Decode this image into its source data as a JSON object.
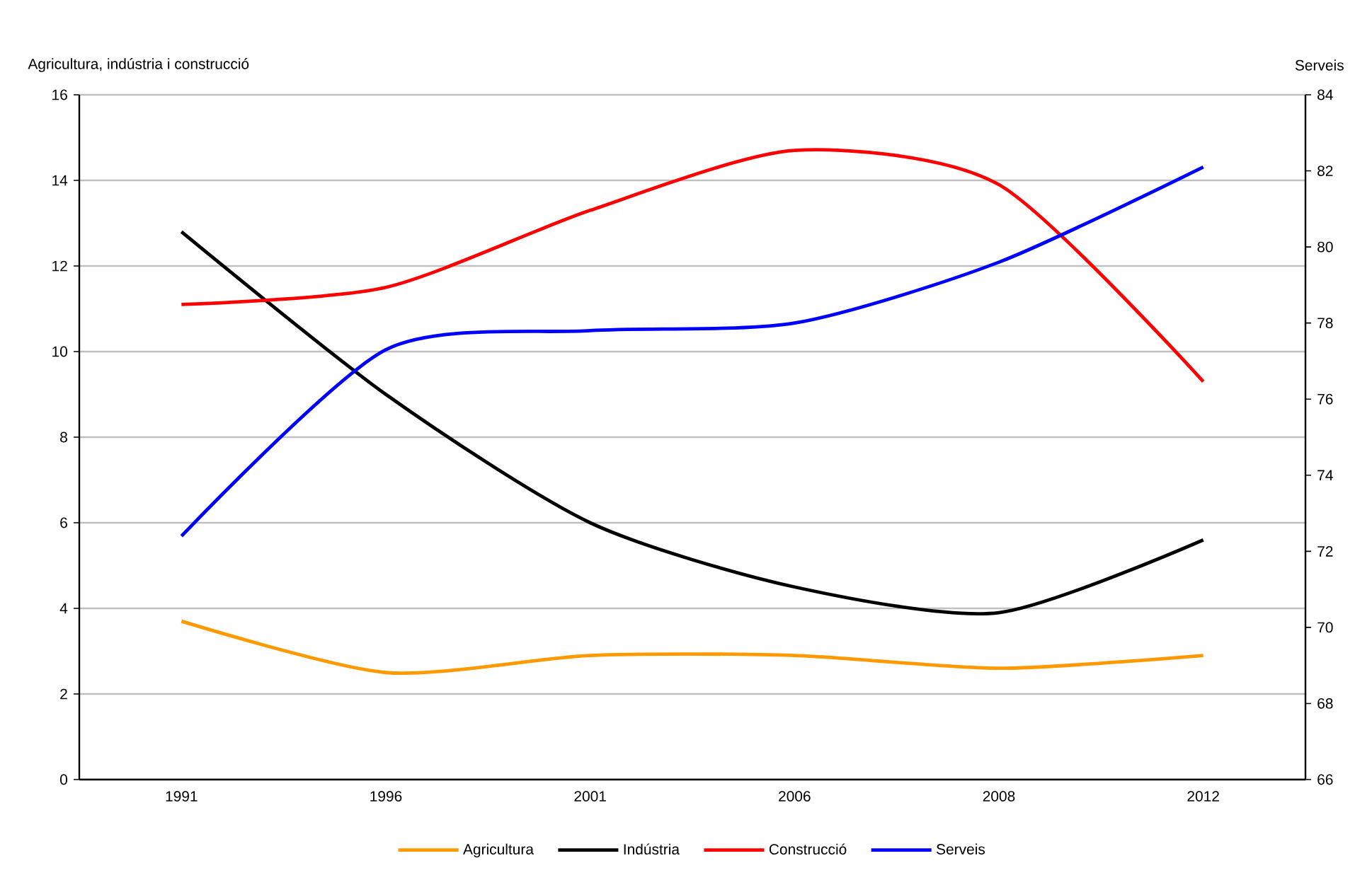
{
  "chart_data": {
    "type": "line",
    "ylabel": "Agricultura, indústria i construcció",
    "y2label": "Serveis",
    "categories": [
      "1991",
      "1996",
      "2001",
      "2006",
      "2008",
      "2012"
    ],
    "series": [
      {
        "name": "Agricultura",
        "color": "#ff9900",
        "values": [
          3.7,
          2.5,
          2.9,
          2.9,
          2.6,
          2.9
        ]
      },
      {
        "name": "Indústria",
        "color": "#000000",
        "values": [
          12.8,
          9.0,
          6.0,
          4.5,
          3.9,
          5.6
        ]
      },
      {
        "name": "Construcció",
        "color": "#ff0000",
        "values": [
          11.1,
          11.5,
          13.3,
          14.7,
          13.9,
          9.3
        ]
      },
      {
        "name": "Serveis",
        "color": "#0000ff",
        "axis": "y2",
        "values": [
          72.4,
          77.3,
          77.8,
          78.0,
          79.6,
          82.1
        ]
      }
    ],
    "ylim": [
      0,
      16
    ],
    "yticks": [
      0,
      2,
      4,
      6,
      8,
      10,
      12,
      14,
      16
    ],
    "y2lim": [
      66,
      84
    ],
    "y2ticks": [
      66,
      68,
      70,
      72,
      74,
      76,
      78,
      80,
      82,
      84
    ],
    "grid": "y",
    "legend": "bottom"
  }
}
